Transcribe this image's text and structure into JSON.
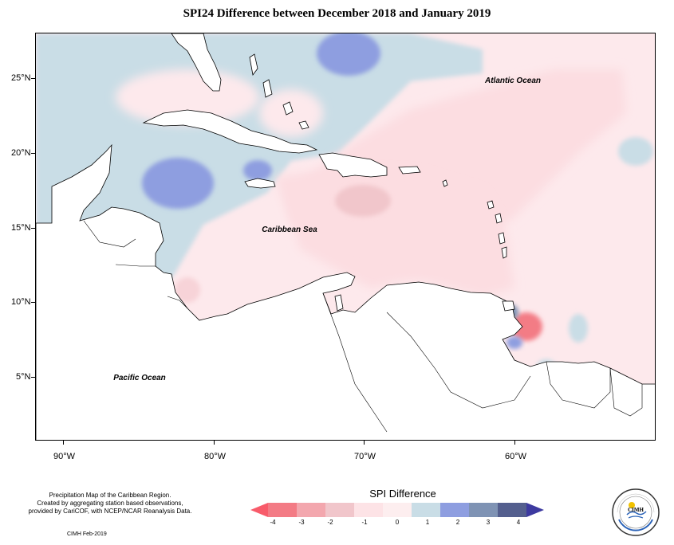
{
  "title": "SPI24 Difference between December 2018 and January 2019",
  "latitude_labels": [
    "25°N",
    "20°N",
    "15°N",
    "10°N",
    "5°N"
  ],
  "longitude_labels": [
    "90°W",
    "80°W",
    "70°W",
    "60°W"
  ],
  "ocean_labels": {
    "atlantic": "Atlantic Ocean",
    "caribbean": "Caribbean Sea",
    "pacific": "Pacific Ocean"
  },
  "notes": {
    "line1": "Precipitation Map of the Caribbean Region.",
    "line2": "Created by aggregating station based observations,",
    "line3": "provided by CariCOF, with NCEP/NCAR Reanalysis Data.",
    "credit": "CIMH Feb-2019"
  },
  "legend": {
    "title": "SPI Difference",
    "ticks": [
      "-4",
      "-3",
      "-2",
      "-1",
      "0",
      "1",
      "2",
      "3",
      "4"
    ],
    "colors": [
      "#f37b85",
      "#f3a7ae",
      "#f1c6cb",
      "#fde3e6",
      "#fdeeef",
      "#c9dde6",
      "#8e9ee0",
      "#7f93b4",
      "#545f8e",
      "#3d3aa0",
      "#f85b6a"
    ]
  },
  "logo_text": "CIMH",
  "colors": {
    "strong_dry": "#f37b85",
    "moderate_dry": "#f3a7ae",
    "slight_dry": "#fcdde1",
    "near_normal": "#fde9ec",
    "slight_wet": "#c9dde6",
    "moderate_wet": "#8e9ee0",
    "land": "#ffffff"
  }
}
